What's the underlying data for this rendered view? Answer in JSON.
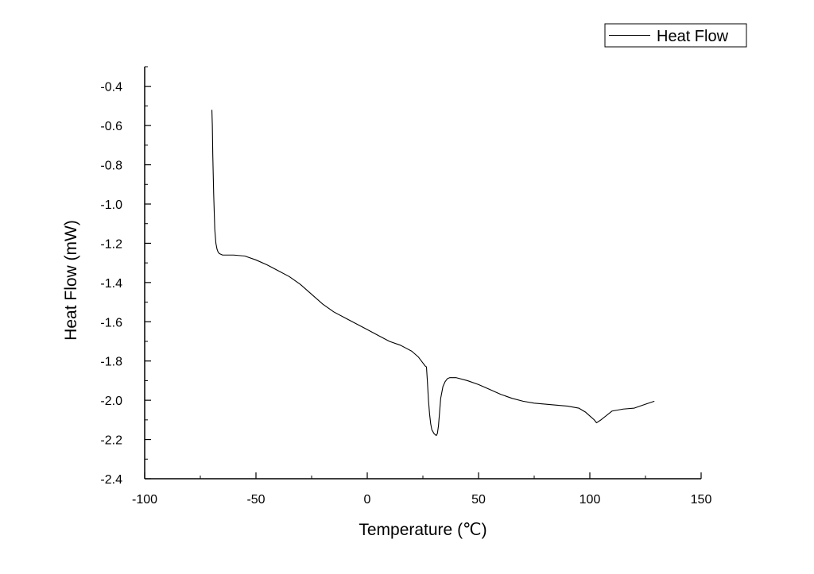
{
  "chart_data": {
    "type": "line",
    "title": "",
    "xlabel": "Temperature (℃)",
    "ylabel": "Heat Flow (mW)",
    "xlim": [
      -100,
      150
    ],
    "ylim": [
      -2.4,
      -0.3
    ],
    "x_ticks": [
      -100,
      -50,
      0,
      50,
      100,
      150
    ],
    "x_tick_labels": [
      "-100",
      "-50",
      "0",
      "50",
      "100",
      "150"
    ],
    "y_ticks": [
      -2.4,
      -2.2,
      -2.0,
      -1.8,
      -1.6,
      -1.4,
      -1.2,
      -1.0,
      -0.8,
      -0.6,
      -0.4
    ],
    "y_tick_labels": [
      "-2.4",
      "-2.2",
      "-2.0",
      "-1.8",
      "-1.6",
      "-1.4",
      "-1.2",
      "-1.0",
      "-0.8",
      "-0.6",
      "-0.4"
    ],
    "grid": false,
    "legend": {
      "position": "top-right",
      "entries": [
        "Heat Flow"
      ]
    },
    "series": [
      {
        "name": "Heat Flow",
        "color": "#000000",
        "x": [
          -69.8,
          -69.6,
          -69.4,
          -69.0,
          -68.5,
          -68.0,
          -67.5,
          -67.0,
          -66.5,
          -66.0,
          -65.0,
          -63.0,
          -60.0,
          -55.0,
          -50.0,
          -45.0,
          -40.0,
          -35.0,
          -30.0,
          -25.0,
          -20.0,
          -15.0,
          -10.0,
          -5.0,
          0.0,
          5.0,
          10.0,
          15.0,
          20.0,
          23.0,
          25.0,
          26.0,
          26.6,
          27.0,
          27.5,
          28.0,
          28.5,
          29.0,
          29.5,
          30.0,
          31.0,
          31.5,
          32.0,
          32.5,
          33.0,
          34.0,
          35.0,
          36.0,
          37.0,
          38.0,
          40.0,
          45.0,
          50.0,
          55.0,
          60.0,
          65.0,
          70.0,
          75.0,
          80.0,
          85.0,
          90.0,
          95.0,
          98.0,
          100.0,
          102.0,
          103.0,
          105.0,
          110.0,
          115.0,
          120.0,
          125.0,
          129.0
        ],
        "y": [
          -0.52,
          -0.6,
          -0.75,
          -0.95,
          -1.13,
          -1.2,
          -1.23,
          -1.245,
          -1.252,
          -1.255,
          -1.26,
          -1.26,
          -1.26,
          -1.265,
          -1.285,
          -1.31,
          -1.34,
          -1.37,
          -1.41,
          -1.46,
          -1.51,
          -1.55,
          -1.58,
          -1.61,
          -1.64,
          -1.67,
          -1.7,
          -1.72,
          -1.75,
          -1.78,
          -1.81,
          -1.825,
          -1.83,
          -1.9,
          -2.0,
          -2.07,
          -2.12,
          -2.15,
          -2.16,
          -2.17,
          -2.18,
          -2.17,
          -2.13,
          -2.06,
          -1.99,
          -1.93,
          -1.905,
          -1.89,
          -1.885,
          -1.885,
          -1.885,
          -1.9,
          -1.92,
          -1.945,
          -1.97,
          -1.99,
          -2.005,
          -2.015,
          -2.02,
          -2.025,
          -2.03,
          -2.04,
          -2.06,
          -2.08,
          -2.1,
          -2.115,
          -2.1,
          -2.055,
          -2.045,
          -2.04,
          -2.02,
          -2.005
        ]
      }
    ]
  }
}
